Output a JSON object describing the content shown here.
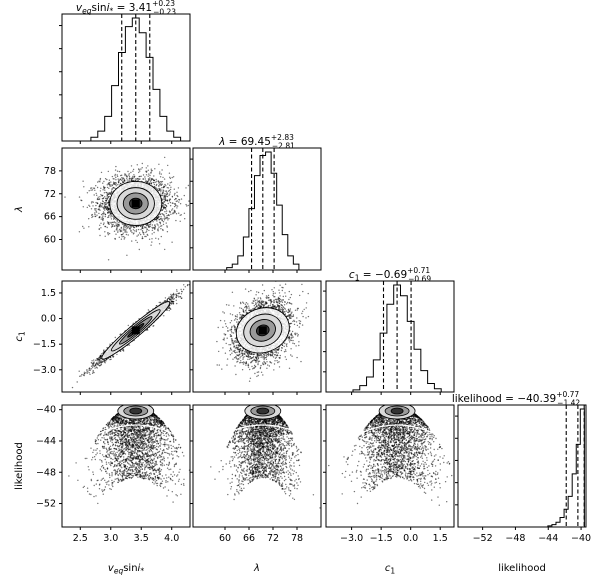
{
  "chart_data": {
    "type": "corner",
    "parameters": [
      {
        "key": "veq",
        "xlabel": "v_eq sin i_*",
        "ylabel": "",
        "range": [
          2.2,
          4.3
        ],
        "ticks": [
          2.5,
          3.0,
          3.5,
          4.0
        ],
        "tick_labels": [
          "2.5",
          "3.0",
          "3.5",
          "4.0"
        ],
        "median": 3.41,
        "plus": 0.23,
        "minus": 0.23,
        "title": {
          "lead": "v",
          "sub": "eq",
          "mid": "sin",
          "it": "i",
          "star": "*",
          "eq": " = 3.41",
          "sup": "+0.23",
          "subv": "−0.23"
        },
        "hist": [
          0.03,
          0.08,
          0.2,
          0.45,
          0.72,
          0.93,
          1.0,
          0.88,
          0.68,
          0.42,
          0.2,
          0.08,
          0.03
        ]
      },
      {
        "key": "lambda",
        "xlabel": "λ",
        "ylabel": "λ",
        "range": [
          52,
          84
        ],
        "ticks": [
          60,
          66,
          72,
          78
        ],
        "tick_labels": [
          "60",
          "66",
          "72",
          "78"
        ],
        "median": 69.45,
        "plus": 2.83,
        "minus": 2.81,
        "title": {
          "lead": "λ",
          "eq": " = 69.45",
          "sup": "+2.83",
          "subv": "−2.81"
        },
        "hist": [
          0.02,
          0.05,
          0.12,
          0.28,
          0.52,
          0.8,
          0.97,
          1.0,
          0.82,
          0.55,
          0.3,
          0.12,
          0.05
        ]
      },
      {
        "key": "c1",
        "xlabel": "c_1",
        "ylabel": "c_1",
        "range": [
          -4.3,
          2.2
        ],
        "ticks": [
          -3.0,
          -1.5,
          0.0,
          1.5
        ],
        "tick_labels": [
          "−3.0",
          "−1.5",
          "0.0",
          "1.5"
        ],
        "median": -0.69,
        "plus": 0.71,
        "minus": 0.69,
        "title": {
          "lead": "c",
          "sub": "1",
          "eq": " = −0.69",
          "sup": "+0.71",
          "subv": "−0.69"
        },
        "hist": [
          0.02,
          0.06,
          0.14,
          0.3,
          0.55,
          0.82,
          1.0,
          0.9,
          0.66,
          0.4,
          0.2,
          0.08,
          0.03
        ]
      },
      {
        "key": "like",
        "xlabel": "likelihood",
        "ylabel": "likelihood",
        "range": [
          -55,
          -39.4
        ],
        "ticks": [
          -52,
          -48,
          -44,
          -40
        ],
        "tick_labels": [
          "−52",
          "−48",
          "−44",
          "−40"
        ],
        "median": -40.39,
        "plus": 0.77,
        "minus": 1.42,
        "title": {
          "lead": "likelihood = −40.39",
          "sup": "+0.77",
          "subv": "−1.42"
        },
        "hist": [
          0,
          0,
          0,
          0,
          0,
          0,
          0,
          0,
          0.01,
          0.02,
          0.04,
          0.08,
          0.15,
          0.26,
          0.45,
          0.7,
          1.0
        ]
      }
    ],
    "correlations": {
      "veq-lambda": 0.0,
      "veq-c1": 0.98,
      "lambda-c1": 0.25
    },
    "quantile_lines": "16th, 50th, 84th percentiles (dashed)",
    "contours": "1-2 sigma density contours over scatter of samples"
  }
}
